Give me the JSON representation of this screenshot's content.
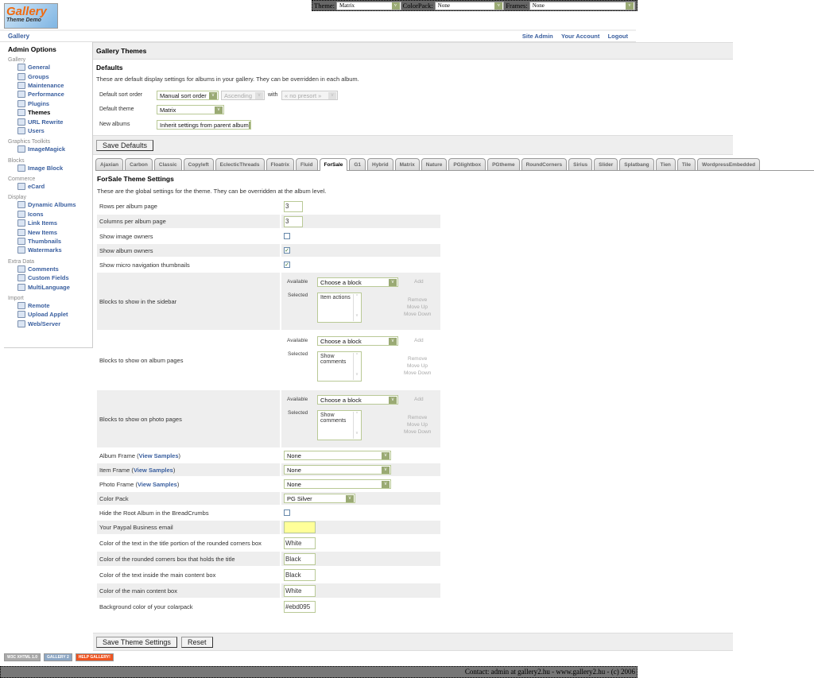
{
  "topbar": {
    "theme_label": "Theme:",
    "theme_value": "Matrix",
    "colorpack_label": "ColorPack:",
    "colorpack_value": "None",
    "frames_label": "Frames:",
    "frames_value": "None"
  },
  "logo": {
    "text": "Gallery",
    "sub": "Theme Demo"
  },
  "nav": {
    "breadcrumb": "Gallery",
    "links": [
      "Site Admin",
      "Your Account",
      "Logout"
    ]
  },
  "sidebar": {
    "title": "Admin Options",
    "groups": [
      {
        "label": "Gallery",
        "items": [
          "General",
          "Groups",
          "Maintenance",
          "Performance",
          "Plugins",
          "Themes",
          "URL Rewrite",
          "Users"
        ],
        "current": "Themes"
      },
      {
        "label": "Graphics Toolkits",
        "items": [
          "ImageMagick"
        ]
      },
      {
        "label": "Blocks",
        "items": [
          "Image Block"
        ]
      },
      {
        "label": "Commerce",
        "items": [
          "eCard"
        ]
      },
      {
        "label": "Display",
        "items": [
          "Dynamic Albums",
          "Icons",
          "Link Items",
          "New Items",
          "Thumbnails",
          "Watermarks"
        ]
      },
      {
        "label": "Extra Data",
        "items": [
          "Comments",
          "Custom Fields",
          "MultiLanguage"
        ]
      },
      {
        "label": "Import",
        "items": [
          "Remote",
          "Upload Applet",
          "Web/Server"
        ]
      }
    ]
  },
  "main": {
    "title": "Gallery Themes",
    "defaults": {
      "heading": "Defaults",
      "desc": "These are default display settings for albums in your gallery. They can be overridden in each album.",
      "sort_label": "Default sort order",
      "sort_value": "Manual sort order",
      "direction_value": "Ascending",
      "with_label": "with",
      "presort_value": "« no presort »",
      "theme_label": "Default theme",
      "theme_value": "Matrix",
      "new_albums_label": "New albums",
      "new_albums_value": "Inherit settings from parent album",
      "save_label": "Save Defaults"
    },
    "tabs": [
      "Ajaxian",
      "Carbon",
      "Classic",
      "Copyleft",
      "EclecticThreads",
      "Floatrix",
      "Fluid",
      "ForSale",
      "G1",
      "Hybrid",
      "Matrix",
      "Nature",
      "PGlightbox",
      "PGtheme",
      "RoundCorners",
      "Sirius",
      "Slider",
      "Splatbang",
      "Tien",
      "Tile",
      "WordpressEmbedded"
    ],
    "active_tab": "ForSale",
    "settings_title": "ForSale Theme Settings",
    "settings_desc": "These are the global settings for the theme. They can be overridden at the album level.",
    "block_labels": {
      "available": "Available",
      "selected": "Selected",
      "choose": "Choose a block",
      "add": "Add",
      "remove": "Remove",
      "move_up": "Move Up",
      "move_down": "Move Down"
    },
    "view_samples": "View Samples",
    "rows": [
      {
        "label": "Rows per album page",
        "type": "text",
        "value": "3"
      },
      {
        "label": "Columns per album page",
        "type": "text",
        "value": "3"
      },
      {
        "label": "Show image owners",
        "type": "checkbox",
        "checked": false
      },
      {
        "label": "Show album owners",
        "type": "checkbox",
        "checked": true
      },
      {
        "label": "Show micro navigation thumbnails",
        "type": "checkbox",
        "checked": true
      },
      {
        "label": "Blocks to show in the sidebar",
        "type": "blocks",
        "selected": "Item actions"
      },
      {
        "label": "Blocks to show on album pages",
        "type": "blocks",
        "selected": "Show comments"
      },
      {
        "label": "Blocks to show on photo pages",
        "type": "blocks",
        "selected": "Show comments"
      },
      {
        "label": "Album Frame",
        "type": "select",
        "value": "None",
        "samples": true
      },
      {
        "label": "Item Frame",
        "type": "select",
        "value": "None",
        "samples": true
      },
      {
        "label": "Photo Frame",
        "type": "select",
        "value": "None",
        "samples": true
      },
      {
        "label": "Color Pack",
        "type": "select",
        "value": "PG Silver",
        "short": true
      },
      {
        "label": "Hide the Root Album in the BreadCrumbs",
        "type": "checkbox",
        "checked": false
      },
      {
        "label": "Your Paypal Business email",
        "type": "color",
        "value": "",
        "bg": "#ffff99"
      },
      {
        "label": "Color of the text in the title portion of the rounded corners box",
        "type": "color",
        "value": "White"
      },
      {
        "label": "Color of the rounded corners box that holds the title",
        "type": "color",
        "value": "Black"
      },
      {
        "label": "Color of the text inside the main content box",
        "type": "color",
        "value": "Black"
      },
      {
        "label": "Color of the main content box",
        "type": "color",
        "value": "White"
      },
      {
        "label": "Background color of your colarpack",
        "type": "color",
        "value": "#ebd095"
      }
    ],
    "save_label": "Save Theme Settings",
    "reset_label": "Reset"
  },
  "badges": [
    "W3C XHTML 1.0",
    "GALLERY 2",
    "HELP GALLERY!"
  ],
  "footer": "Contact: admin at gallery2.hu - www.gallery2.hu - (c) 2006"
}
